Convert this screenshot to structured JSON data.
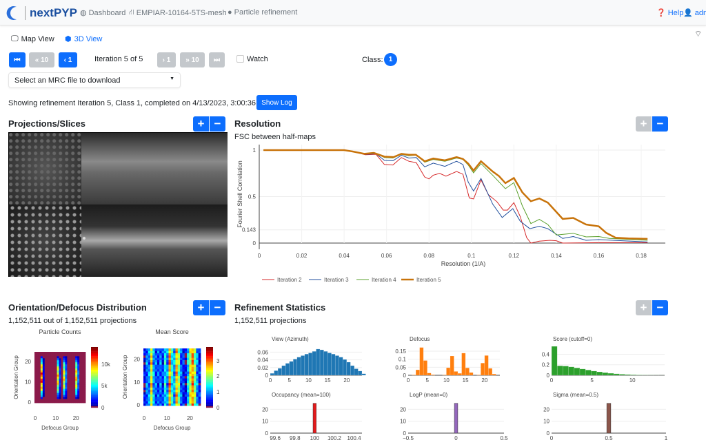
{
  "header": {
    "brand": "nextPYP",
    "nav": [
      {
        "icon": "dashboard-icon",
        "label": "Dashboard"
      },
      {
        "icon": "project-icon",
        "label": "EMPIAR-10164-5TS-mesh"
      },
      {
        "icon": "block-icon",
        "label": "Particle refinement"
      }
    ],
    "help": "Help",
    "user": "admi"
  },
  "view_tabs": [
    {
      "label": "Map View",
      "icon": "monitor-icon"
    },
    {
      "label": "3D View",
      "icon": "cube-icon",
      "active": true
    }
  ],
  "iteration": {
    "first": "⏮",
    "back10": "« 10",
    "back1": "‹ 1",
    "label": "Iteration 5 of 5",
    "fwd1": "› 1",
    "fwd10": "» 10",
    "last": "⏭",
    "watch": "Watch",
    "watch_checked": false,
    "class_label": "Class:",
    "class_value": "1"
  },
  "download_select": {
    "placeholder": "Select an MRC file to download"
  },
  "status": {
    "text": "Showing refinement Iteration 5, Class 1, completed on 4/13/2023, 3:00:36 AM",
    "show_log": "Show Log"
  },
  "projections": {
    "title": "Projections/Slices",
    "plus": "+",
    "minus": "−"
  },
  "resolution": {
    "title": "Resolution",
    "plus": "+",
    "minus": "−"
  },
  "orientation": {
    "title": "Orientation/Defocus Distribution",
    "count": "1,152,511 out of 1,152,511 projections",
    "plus": "+",
    "minus": "−"
  },
  "refinement_stats": {
    "title": "Refinement Statistics",
    "count": "1,152,511 projections",
    "plus": "+",
    "minus": "−"
  },
  "chart_data": [
    {
      "id": "fsc",
      "type": "line",
      "title": "FSC between half-maps",
      "xlabel": "Resolution (1/A)",
      "ylabel": "Fourier Shell Correlation",
      "xlim": [
        0,
        0.19
      ],
      "ylim": [
        -0.05,
        1.05
      ],
      "xticks": [
        "0",
        "0.02",
        "0.04",
        "0.06",
        "0.08",
        "0.1",
        "0.12",
        "0.14",
        "0.16",
        "0.18"
      ],
      "yticks": [
        "0",
        "0.143",
        "0.5",
        "1"
      ],
      "legend": "bottom",
      "series": [
        {
          "name": "Iteration 2",
          "color": "#d62728",
          "points": [
            [
              0.002,
              1
            ],
            [
              0.04,
              1
            ],
            [
              0.044,
              0.985
            ],
            [
              0.05,
              0.95
            ],
            [
              0.055,
              0.955
            ],
            [
              0.059,
              0.845
            ],
            [
              0.063,
              0.84
            ],
            [
              0.067,
              0.92
            ],
            [
              0.0705,
              0.88
            ],
            [
              0.074,
              0.865
            ],
            [
              0.078,
              0.71
            ],
            [
              0.08,
              0.69
            ],
            [
              0.082,
              0.73
            ],
            [
              0.085,
              0.75
            ],
            [
              0.088,
              0.72
            ],
            [
              0.093,
              0.77
            ],
            [
              0.096,
              0.74
            ],
            [
              0.099,
              0.485
            ],
            [
              0.101,
              0.475
            ],
            [
              0.1045,
              0.68
            ],
            [
              0.108,
              0.52
            ],
            [
              0.112,
              0.445
            ],
            [
              0.115,
              0.355
            ],
            [
              0.117,
              0.355
            ],
            [
              0.12,
              0.435
            ],
            [
              0.123,
              0.285
            ],
            [
              0.126,
              0.06
            ],
            [
              0.128,
              0
            ],
            [
              0.132,
              0.02
            ],
            [
              0.137,
              0.03
            ],
            [
              0.14,
              0.025
            ],
            [
              0.143,
              0
            ],
            [
              0.16,
              0.005
            ],
            [
              0.183,
              0.005
            ]
          ]
        },
        {
          "name": "Iteration 3",
          "color": "#1f4e9c",
          "points": [
            [
              0.002,
              1
            ],
            [
              0.04,
              1
            ],
            [
              0.044,
              0.985
            ],
            [
              0.05,
              0.955
            ],
            [
              0.055,
              0.96
            ],
            [
              0.059,
              0.89
            ],
            [
              0.063,
              0.885
            ],
            [
              0.067,
              0.945
            ],
            [
              0.0705,
              0.915
            ],
            [
              0.074,
              0.92
            ],
            [
              0.078,
              0.82
            ],
            [
              0.082,
              0.86
            ],
            [
              0.0875,
              0.825
            ],
            [
              0.093,
              0.88
            ],
            [
              0.096,
              0.845
            ],
            [
              0.0985,
              0.655
            ],
            [
              0.101,
              0.56
            ],
            [
              0.1045,
              0.695
            ],
            [
              0.11,
              0.42
            ],
            [
              0.1145,
              0.275
            ],
            [
              0.1195,
              0.37
            ],
            [
              0.123,
              0.235
            ],
            [
              0.1275,
              0.155
            ],
            [
              0.132,
              0.18
            ],
            [
              0.136,
              0.155
            ],
            [
              0.143,
              0.05
            ],
            [
              0.148,
              0.07
            ],
            [
              0.154,
              0.03
            ],
            [
              0.16,
              0.037
            ],
            [
              0.171,
              0.025
            ],
            [
              0.183,
              0.012
            ]
          ]
        },
        {
          "name": "Iteration 4",
          "color": "#5aa02c",
          "points": [
            [
              0.002,
              1
            ],
            [
              0.04,
              1
            ],
            [
              0.044,
              0.985
            ],
            [
              0.05,
              0.96
            ],
            [
              0.055,
              0.965
            ],
            [
              0.059,
              0.92
            ],
            [
              0.063,
              0.915
            ],
            [
              0.067,
              0.955
            ],
            [
              0.0705,
              0.94
            ],
            [
              0.074,
              0.945
            ],
            [
              0.078,
              0.87
            ],
            [
              0.082,
              0.9
            ],
            [
              0.0875,
              0.88
            ],
            [
              0.093,
              0.915
            ],
            [
              0.096,
              0.9
            ],
            [
              0.0985,
              0.84
            ],
            [
              0.101,
              0.755
            ],
            [
              0.1045,
              0.855
            ],
            [
              0.11,
              0.73
            ],
            [
              0.116,
              0.585
            ],
            [
              0.12,
              0.65
            ],
            [
              0.124,
              0.4
            ],
            [
              0.128,
              0.21
            ],
            [
              0.132,
              0.255
            ],
            [
              0.136,
              0.2
            ],
            [
              0.14,
              0.087
            ],
            [
              0.148,
              0.105
            ],
            [
              0.154,
              0.067
            ],
            [
              0.16,
              0.07
            ],
            [
              0.165,
              0.05
            ],
            [
              0.183,
              0.03
            ]
          ]
        },
        {
          "name": "Iteration 5",
          "color": "#c8730a",
          "points": [
            [
              0.002,
              1
            ],
            [
              0.04,
              1
            ],
            [
              0.044,
              0.985
            ],
            [
              0.0495,
              0.96
            ],
            [
              0.054,
              0.97
            ],
            [
              0.059,
              0.93
            ],
            [
              0.0633,
              0.925
            ],
            [
              0.067,
              0.96
            ],
            [
              0.0705,
              0.95
            ],
            [
              0.0738,
              0.95
            ],
            [
              0.078,
              0.88
            ],
            [
              0.082,
              0.91
            ],
            [
              0.0875,
              0.89
            ],
            [
              0.093,
              0.925
            ],
            [
              0.096,
              0.905
            ],
            [
              0.0985,
              0.855
            ],
            [
              0.101,
              0.78
            ],
            [
              0.1045,
              0.88
            ],
            [
              0.11,
              0.77
            ],
            [
              0.113,
              0.72
            ],
            [
              0.116,
              0.645
            ],
            [
              0.12,
              0.7
            ],
            [
              0.124,
              0.545
            ],
            [
              0.128,
              0.45
            ],
            [
              0.132,
              0.48
            ],
            [
              0.136,
              0.435
            ],
            [
              0.14,
              0.335
            ],
            [
              0.143,
              0.26
            ],
            [
              0.148,
              0.27
            ],
            [
              0.154,
              0.2
            ],
            [
              0.16,
              0.18
            ],
            [
              0.1635,
              0.11
            ],
            [
              0.168,
              0.057
            ],
            [
              0.174,
              0.05
            ],
            [
              0.183,
              0.045
            ]
          ]
        }
      ]
    },
    {
      "id": "counts",
      "type": "heatmap",
      "title": "Particle Counts",
      "xlabel": "Defocus Group",
      "ylabel": "Orientation Group",
      "xticks": [
        "0",
        "10",
        "20"
      ],
      "yticks": [
        "0",
        "10",
        "20"
      ],
      "colorbar_ticks": [
        "0",
        "5k",
        "10k"
      ],
      "zmax": 14000,
      "column_peaks": [
        0,
        0,
        0,
        13000,
        2000,
        0,
        0,
        0,
        0,
        0,
        0,
        10500,
        3000,
        0,
        10000,
        4000,
        0,
        0,
        0,
        0,
        10500,
        4000,
        0,
        0,
        0
      ]
    },
    {
      "id": "score",
      "type": "heatmap",
      "title": "Mean Score",
      "xlabel": "Defocus Group",
      "ylabel": "Orientation Group",
      "xticks": [
        "0",
        "10",
        "20"
      ],
      "yticks": [
        "0",
        "10",
        "20"
      ],
      "colorbar_ticks": [
        "0",
        "1",
        "2",
        "3"
      ],
      "zmax": 3.8,
      "column_means": [
        0.3,
        0.9,
        1.0,
        2.4,
        1.1,
        0.8,
        0.7,
        0.9,
        0.6,
        1.4,
        1.0,
        2.8,
        1.5,
        1.1,
        2.6,
        1.9,
        0.8,
        0.6,
        0.3,
        1.3,
        2.2,
        2.8,
        1.9,
        1.0,
        0.5
      ]
    },
    {
      "id": "view",
      "type": "bar",
      "title": "View (Azimuth)",
      "color": "#1f77b4",
      "xlim": [
        0,
        24
      ],
      "ylim": [
        0,
        0.075
      ],
      "xticks": [
        "0",
        "5",
        "10",
        "15",
        "20"
      ],
      "yticks": [
        "0",
        "0.02",
        "0.04",
        "0.06"
      ],
      "values": [
        0.005,
        0.012,
        0.018,
        0.025,
        0.031,
        0.036,
        0.042,
        0.047,
        0.051,
        0.055,
        0.058,
        0.062,
        0.068,
        0.066,
        0.062,
        0.058,
        0.055,
        0.051,
        0.047,
        0.041,
        0.034,
        0.025,
        0.017,
        0.011,
        0.004
      ]
    },
    {
      "id": "defocus",
      "type": "bar",
      "title": "Defocus",
      "color": "#ff7f0e",
      "xlim": [
        0,
        24
      ],
      "ylim": [
        0,
        0.18
      ],
      "xticks": [
        "0",
        "5",
        "10",
        "15",
        "20"
      ],
      "yticks": [
        "0",
        "0.05",
        "0.1",
        "0.15"
      ],
      "values": [
        0,
        0.003,
        0.034,
        0.173,
        0.092,
        0.014,
        0.004,
        0,
        0,
        0.003,
        0.047,
        0.12,
        0.024,
        0.012,
        0.138,
        0.046,
        0.017,
        0,
        0.003,
        0.076,
        0.123,
        0.043,
        0.008,
        0
      ]
    },
    {
      "id": "score_hist",
      "type": "bar",
      "title": "Score (cutoff=0)",
      "color": "#2ca02c",
      "xlim": [
        0,
        14
      ],
      "ylim": [
        0,
        0.55
      ],
      "xticks": [
        "0",
        "5",
        "10"
      ],
      "yticks": [
        "0",
        "0.2",
        "0.4"
      ],
      "values": [
        0.55,
        0.18,
        0.175,
        0.16,
        0.14,
        0.12,
        0.1,
        0.08,
        0.065,
        0.05,
        0.038,
        0.028,
        0.02,
        0.014,
        0.01,
        0.007,
        0.005,
        0.003,
        0.002,
        0.001
      ]
    },
    {
      "id": "occupancy",
      "type": "bar",
      "title": "Occupancy (mean=100)",
      "color": "#e41a1c",
      "xlim": [
        99.55,
        100.48
      ],
      "ylim": [
        0,
        26
      ],
      "xticks": [
        "99.6",
        "99.8",
        "100",
        "100.2",
        "100.4"
      ],
      "yticks": [
        "0",
        "10",
        "20"
      ],
      "bar_x": 100,
      "value": 25
    },
    {
      "id": "logp",
      "type": "bar",
      "title": "LogP (mean=0)",
      "color": "#9467bd",
      "xlim": [
        -0.5,
        0.5
      ],
      "ylim": [
        0,
        26
      ],
      "xticks": [
        "−0.5",
        "0",
        "0.5"
      ],
      "yticks": [
        "0",
        "10",
        "20"
      ],
      "bar_x": 0,
      "value": 25
    },
    {
      "id": "sigma",
      "type": "bar",
      "title": "Sigma (mean=0.5)",
      "color": "#8c564b",
      "xlim": [
        0,
        1
      ],
      "ylim": [
        0,
        26
      ],
      "xticks": [
        "0",
        "0.5",
        "1"
      ],
      "yticks": [
        "0",
        "10",
        "20"
      ],
      "bar_x": 0.5,
      "value": 25
    }
  ]
}
